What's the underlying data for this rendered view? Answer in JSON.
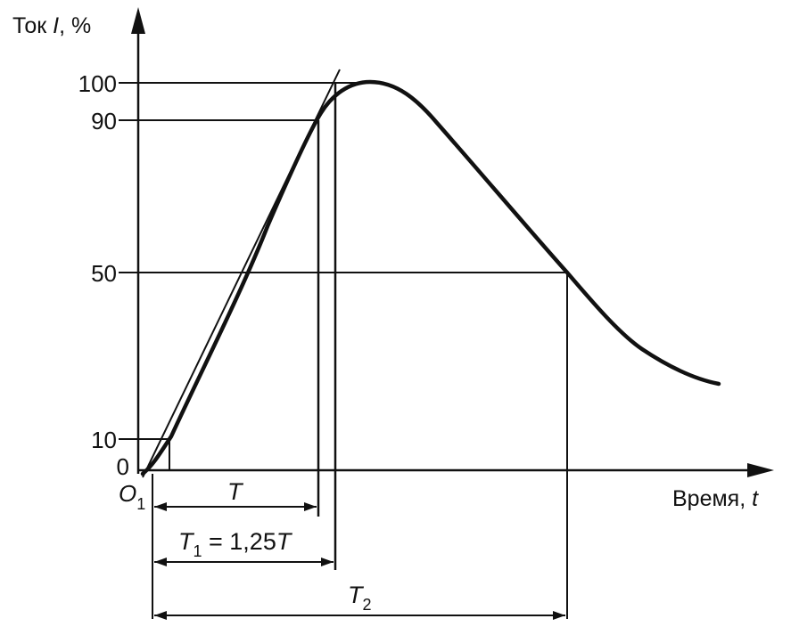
{
  "axes": {
    "y_label_prefix": "Ток ",
    "y_label_symbol": "I",
    "y_label_suffix": ", %",
    "x_label_prefix": "Время, ",
    "x_label_symbol": "t"
  },
  "y_ticks": [
    "100",
    "90",
    "50",
    "10",
    "0"
  ],
  "origin": {
    "letter": "O",
    "sub": "1"
  },
  "intervals": {
    "t_label": "T",
    "t1_symbol": "T",
    "t1_sub": "1",
    "t1_rest": " = 1,25",
    "t1_end": "T",
    "t2_symbol": "T",
    "t2_sub": "2"
  }
}
